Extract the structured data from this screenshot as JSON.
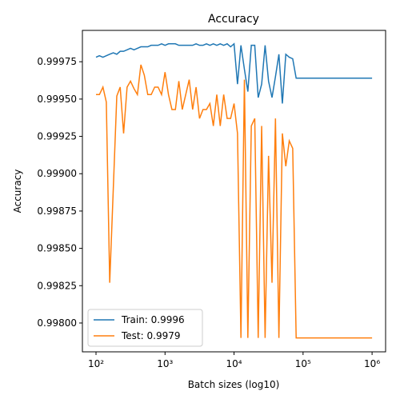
{
  "chart_data": {
    "type": "line",
    "title": "Accuracy",
    "xlabel": "Batch sizes (log10)",
    "ylabel": "Accuracy",
    "xscale": "log",
    "grid": false,
    "legend": "lower left",
    "xlim": [
      63.5,
      1570000
    ],
    "ylim": [
      0.997807,
      0.99996
    ],
    "xticks": [
      {
        "value": 100,
        "label": "10²"
      },
      {
        "value": 1000,
        "label": "10³"
      },
      {
        "value": 10000,
        "label": "10⁴"
      },
      {
        "value": 100000,
        "label": "10⁵"
      },
      {
        "value": 1000000,
        "label": "10⁶"
      }
    ],
    "yticks": [
      {
        "value": 0.998,
        "label": "0.99800"
      },
      {
        "value": 0.99825,
        "label": "0.99825"
      },
      {
        "value": 0.9985,
        "label": "0.99850"
      },
      {
        "value": 0.99875,
        "label": "0.99875"
      },
      {
        "value": 0.999,
        "label": "0.99900"
      },
      {
        "value": 0.99925,
        "label": "0.99925"
      },
      {
        "value": 0.9995,
        "label": "0.99950"
      },
      {
        "value": 0.99975,
        "label": "0.99975"
      }
    ],
    "x": [
      100,
      112,
      126,
      141,
      158,
      178,
      200,
      224,
      251,
      282,
      316,
      355,
      398,
      447,
      501,
      562,
      631,
      708,
      794,
      891,
      1000,
      1122,
      1259,
      1413,
      1585,
      1778,
      1995,
      2239,
      2512,
      2818,
      3162,
      3548,
      3981,
      4467,
      5012,
      5623,
      6310,
      7079,
      7943,
      8913,
      10000,
      11220,
      12589,
      14125,
      15849,
      17783,
      19953,
      22387,
      25119,
      28184,
      31623,
      35481,
      39811,
      44668,
      50119,
      56234,
      63096,
      70795,
      79433,
      1000000
    ],
    "series": [
      {
        "name": "Train: 0.9996",
        "color": "#1f77b4",
        "values": [
          0.99978,
          0.99979,
          0.99978,
          0.99979,
          0.9998,
          0.99981,
          0.9998,
          0.99982,
          0.99982,
          0.99983,
          0.99984,
          0.99983,
          0.99984,
          0.99985,
          0.99985,
          0.99985,
          0.99986,
          0.99986,
          0.99986,
          0.99987,
          0.99986,
          0.99987,
          0.99987,
          0.99987,
          0.99986,
          0.99986,
          0.99986,
          0.99986,
          0.99986,
          0.99987,
          0.99986,
          0.99986,
          0.99987,
          0.99986,
          0.99987,
          0.99986,
          0.99987,
          0.99986,
          0.99987,
          0.99985,
          0.99987,
          0.9996,
          0.99986,
          0.9997,
          0.99955,
          0.99986,
          0.99986,
          0.99951,
          0.9996,
          0.99986,
          0.99962,
          0.99951,
          0.99965,
          0.9998,
          0.99947,
          0.9998,
          0.99978,
          0.99977,
          0.99964,
          0.99964
        ]
      },
      {
        "name": "Test: 0.9979",
        "color": "#ff7f0e",
        "values": [
          0.99953,
          0.99953,
          0.99958,
          0.99948,
          0.99827,
          0.9989,
          0.99952,
          0.99958,
          0.99927,
          0.99958,
          0.99962,
          0.99957,
          0.99953,
          0.99973,
          0.99966,
          0.99953,
          0.99953,
          0.99958,
          0.99958,
          0.99953,
          0.99968,
          0.99953,
          0.99943,
          0.99943,
          0.99962,
          0.99943,
          0.99953,
          0.99963,
          0.99943,
          0.99958,
          0.99937,
          0.99943,
          0.99943,
          0.99947,
          0.99932,
          0.99953,
          0.99932,
          0.99953,
          0.99937,
          0.99937,
          0.99947,
          0.99927,
          0.9979,
          0.99963,
          0.9979,
          0.99932,
          0.99937,
          0.9979,
          0.99932,
          0.9979,
          0.99912,
          0.99827,
          0.99937,
          0.9979,
          0.99927,
          0.99905,
          0.99922,
          0.99917,
          0.9979,
          0.9979
        ]
      }
    ]
  }
}
